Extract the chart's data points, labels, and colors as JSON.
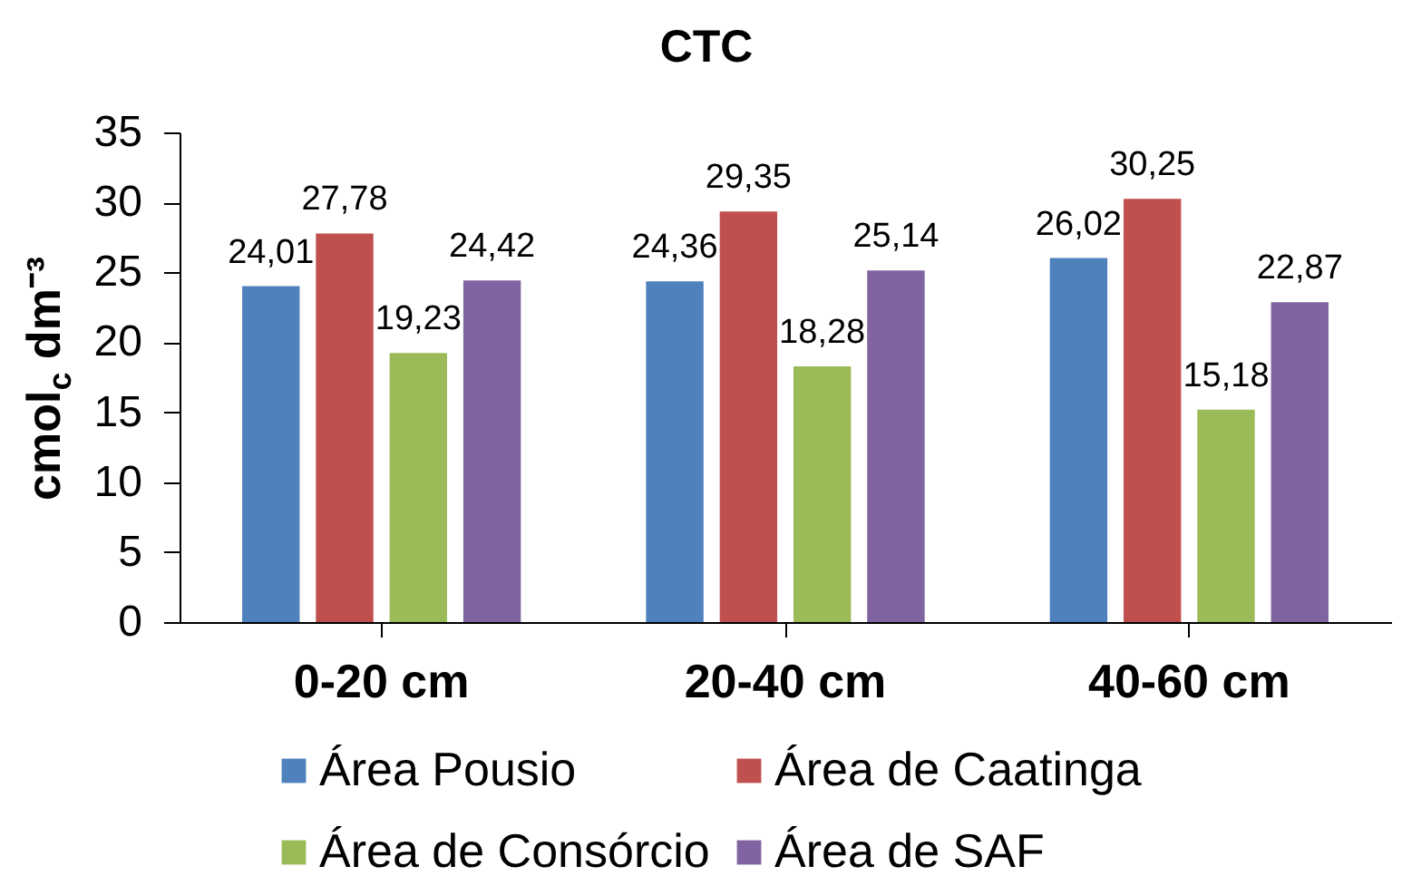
{
  "chart_data": {
    "type": "bar",
    "title": "CTC",
    "ylabel": "cmol$_{c}$ dm⁻³",
    "categories": [
      "0-20 cm",
      "20-40 cm",
      "40-60 cm"
    ],
    "ylim": [
      0,
      35
    ],
    "yticks": [
      0,
      5,
      10,
      15,
      20,
      25,
      30,
      35
    ],
    "grid": false,
    "legend": "bottom",
    "series": [
      {
        "name": "Área Pousio",
        "color": "#4f81bd",
        "values": [
          24.01,
          24.36,
          26.02
        ],
        "value_labels": [
          "24,01",
          "24,36",
          "26,02"
        ]
      },
      {
        "name": "Área de Caatinga",
        "color": "#c0504d",
        "values": [
          27.78,
          29.35,
          30.25
        ],
        "value_labels": [
          "27,78",
          "29,35",
          "30,25"
        ]
      },
      {
        "name": "Área de Consórcio",
        "color": "#9bbb59",
        "values": [
          19.23,
          18.28,
          15.18
        ],
        "value_labels": [
          "19,23",
          "18,28",
          "15,18"
        ]
      },
      {
        "name": "Área de SAF",
        "color": "#8064a2",
        "values": [
          24.42,
          25.14,
          22.87
        ],
        "value_labels": [
          "24,42",
          "25,14",
          "22,87"
        ]
      }
    ]
  }
}
